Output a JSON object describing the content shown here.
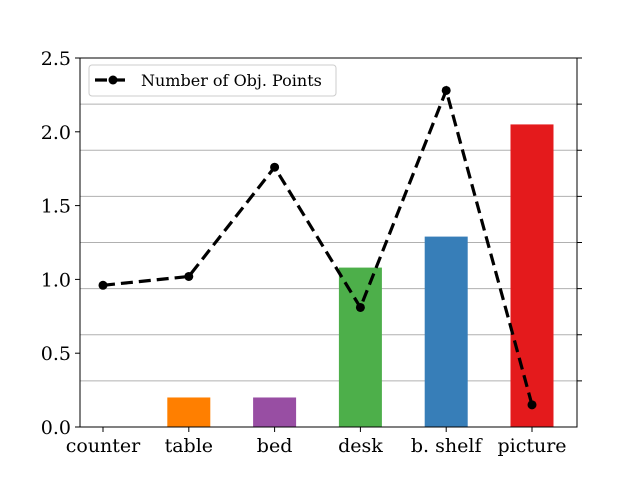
{
  "chart_data": {
    "type": "bar",
    "categories": [
      "counter",
      "table",
      "bed",
      "desk",
      "b. shelf",
      "picture"
    ],
    "series": [
      {
        "type": "bar",
        "values": [
          0.0,
          0.2,
          0.2,
          1.08,
          1.29,
          2.05
        ],
        "colors": [
          "#ff7f00",
          "#ff7f00",
          "#984ea3",
          "#4daf4a",
          "#377eb8",
          "#e41a1c"
        ]
      },
      {
        "type": "line",
        "name": "Number of Obj. Points",
        "values": [
          0.96,
          1.02,
          1.76,
          0.81,
          2.28,
          0.15
        ],
        "color": "#000000",
        "style": "dashed",
        "marker": "circle"
      }
    ],
    "ylim": [
      0,
      2.5
    ],
    "yticks": [
      "0.0",
      "0.5",
      "1.0",
      "1.5",
      "2.0",
      "2.5"
    ],
    "xlabel": "",
    "ylabel": "",
    "grid": "horizontal (secondary axis)",
    "secondary_axis": "right, unlabeled ticks",
    "legend_position": "top-left"
  }
}
